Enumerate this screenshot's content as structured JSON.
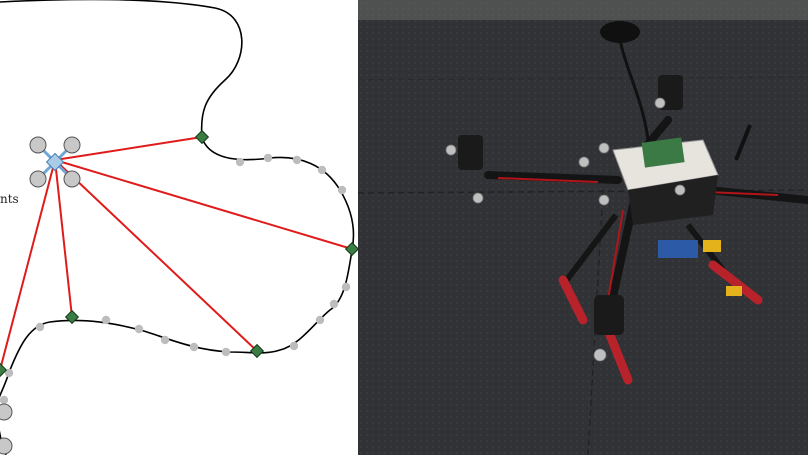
{
  "diagram": {
    "clipped_label": "nts",
    "path_color": "#000000",
    "waypoint_color": "#bdbdbd",
    "selected_waypoint_color": "#3a7d44",
    "ray_color": "#e01b1b",
    "drone_icon": "quadrotor-icon"
  },
  "photo": {
    "subject": "quadrotor-drone-photo",
    "floor_color": "#2f3134"
  }
}
